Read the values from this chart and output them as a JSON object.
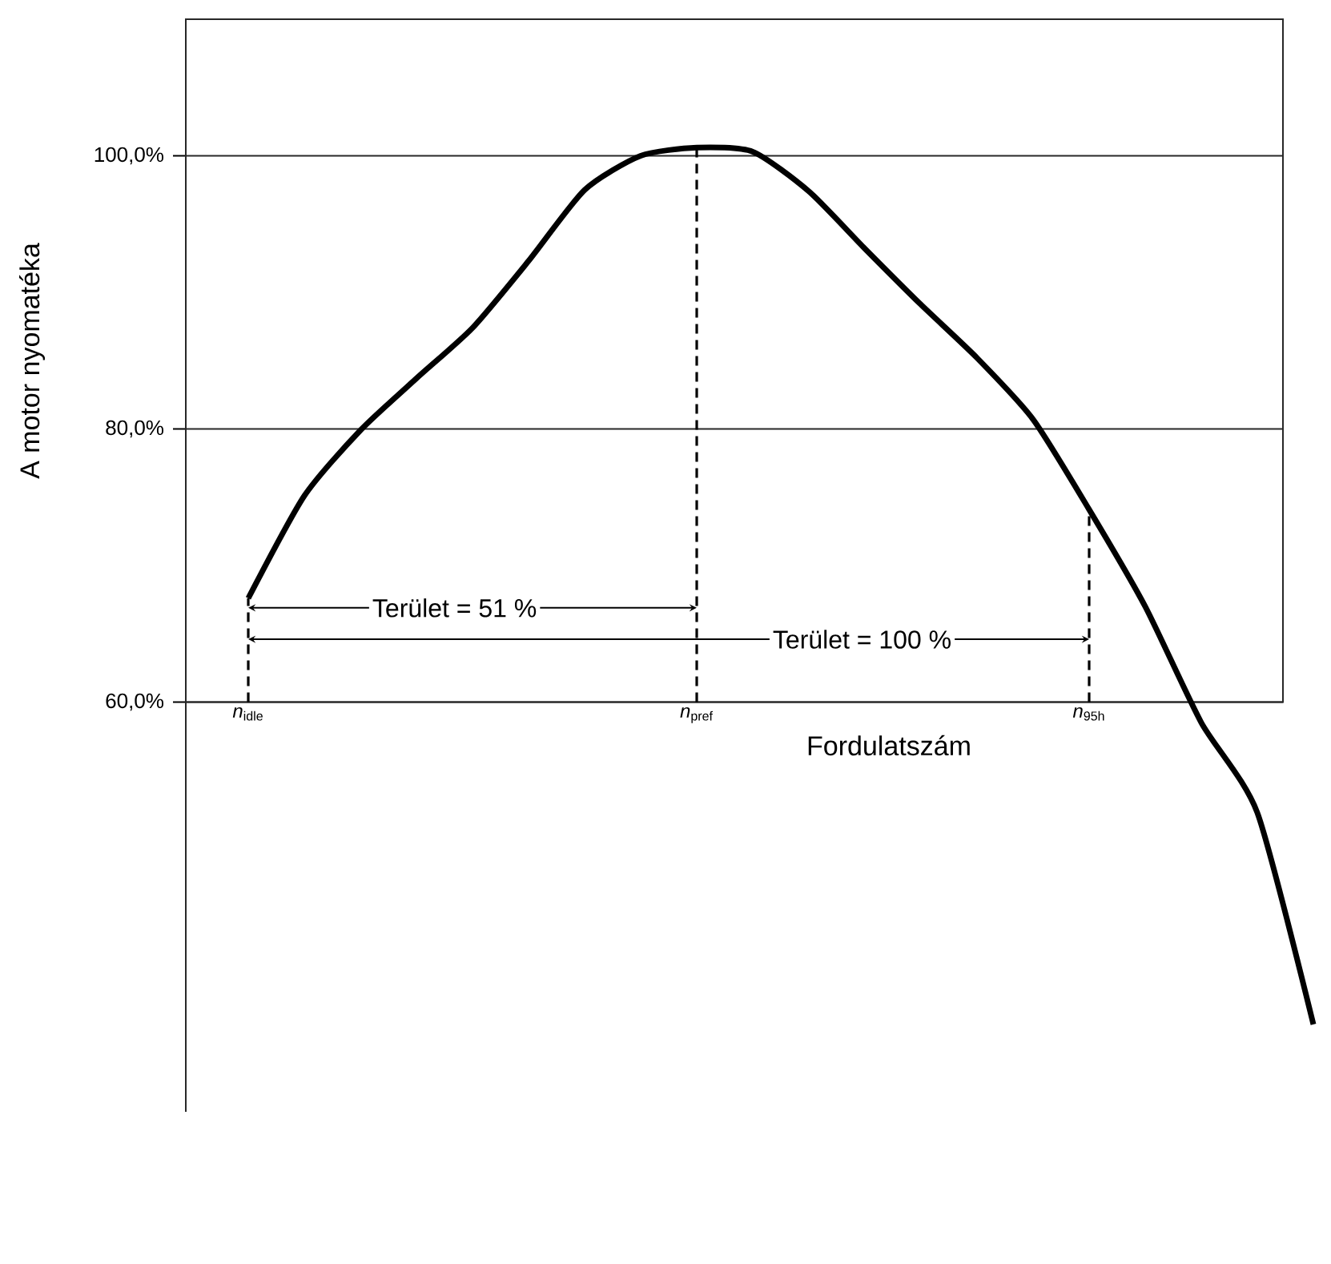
{
  "chart_data": {
    "type": "line",
    "xlabel": "Fordulatszám",
    "ylabel": "A motor nyomatéka",
    "categories": [
      "*n*$_{idle}$",
      null,
      null,
      null,
      null,
      null,
      null,
      null,
      "*n*$_{pref}$",
      null,
      null,
      null,
      null,
      null,
      null,
      "*n*$_{95h}$",
      null,
      null,
      null,
      null
    ],
    "ylim": [
      30,
      110
    ],
    "yticks": [
      {
        "value": 60,
        "label": "60,0%"
      },
      {
        "value": 80,
        "label": "80,0%"
      },
      {
        "value": 100,
        "label": "100,0%"
      }
    ],
    "grid": "y",
    "marker": "none",
    "line_style": "solid",
    "series": [
      {
        "color": "#000000",
        "values": [
          67.6,
          75.1,
          79.9,
          83.7,
          87.4,
          92.3,
          97.5,
          100.0,
          100.6,
          100.3,
          97.4,
          93.2,
          89.1,
          85.2,
          80.7,
          74.1,
          67.0,
          58.5,
          51.9,
          36.4
        ]
      }
    ],
    "ref_lines": [
      {
        "axis": "x",
        "value": "*n*$_{idle}$",
        "color": "#000000",
        "line_style": "dashed"
      },
      {
        "axis": "x",
        "value": "*n*$_{pref}$",
        "color": "#000000",
        "line_style": "dashed"
      },
      {
        "axis": "x",
        "value": "*n*$_{95h}$",
        "color": "#000000",
        "line_style": "dashed"
      }
    ],
    "annotations": [
      "Terület = 51 %",
      "Terület = 100 %"
    ]
  }
}
